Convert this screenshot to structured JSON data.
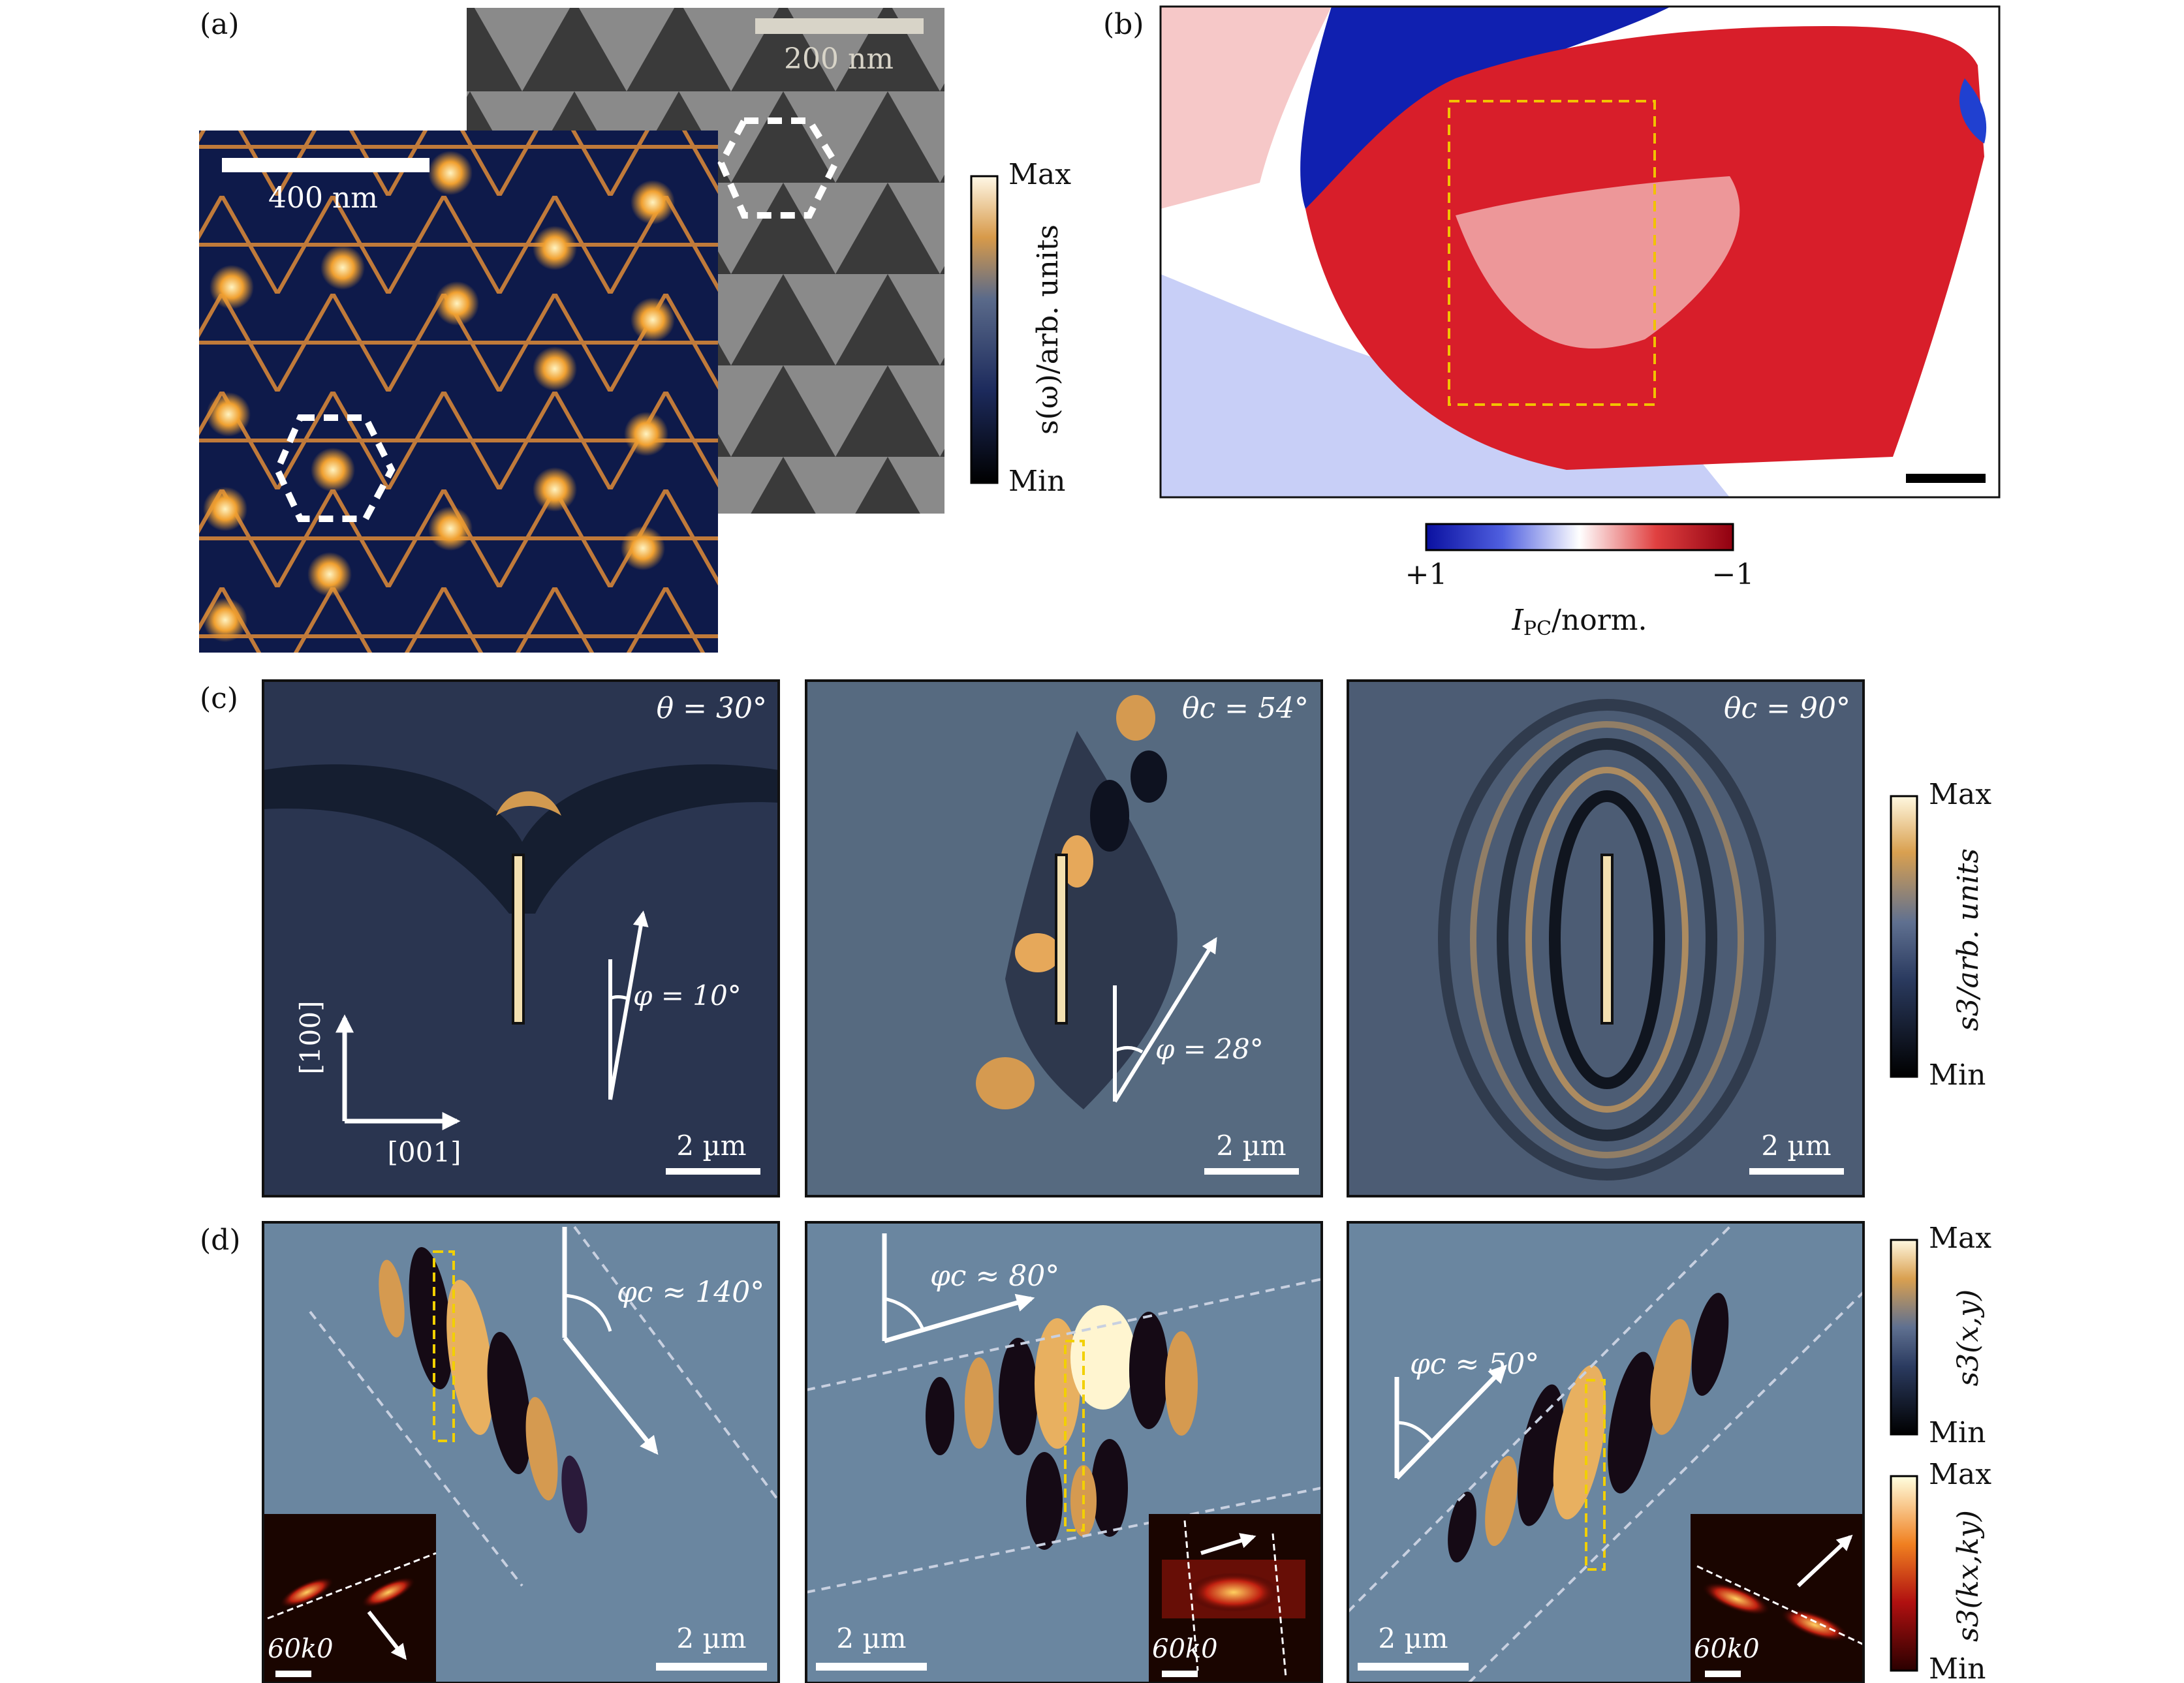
{
  "panel_a": {
    "label": "(a)",
    "scalebar_large": "400 nm",
    "scalebar_small": "200 nm",
    "colorbar": {
      "max": "Max",
      "min": "Min",
      "title": "s(ω)/arb. units"
    }
  },
  "panel_b": {
    "label": "(b)",
    "colorbar": {
      "left": "+1",
      "right": "−1",
      "title_main": "I",
      "title_sub": "PC",
      "title_rest": "/norm."
    }
  },
  "panel_c": {
    "label": "(c)",
    "maps": [
      {
        "angle": "θ = 30°",
        "phi": "φ = 10°",
        "scalebar": "2 µm"
      },
      {
        "angle": "θc = 54°",
        "phi": "φ = 28°",
        "scalebar": "2 µm"
      },
      {
        "angle": "θc = 90°",
        "scalebar": "2 µm"
      }
    ],
    "axis_vertical": "[100]",
    "axis_horizontal": "[001]",
    "colorbar": {
      "max": "Max",
      "min": "Min",
      "title": "s3/arb. units"
    }
  },
  "panel_d": {
    "label": "(d)",
    "maps": [
      {
        "angle": "φc ≈ 140°",
        "scalebar": "2 µm",
        "inset_label": "60k0"
      },
      {
        "angle": "φc ≈ 80°",
        "scalebar": "2 µm",
        "inset_label": "60k0"
      },
      {
        "angle": "φc ≈ 50°",
        "scalebar": "2 µm",
        "inset_label": "60k0"
      }
    ],
    "colorbar_real": {
      "max": "Max",
      "min": "Min",
      "title": "s3(x,y)"
    },
    "colorbar_k": {
      "max": "Max",
      "min": "Min",
      "title": "s3(kx,ky)"
    }
  }
}
